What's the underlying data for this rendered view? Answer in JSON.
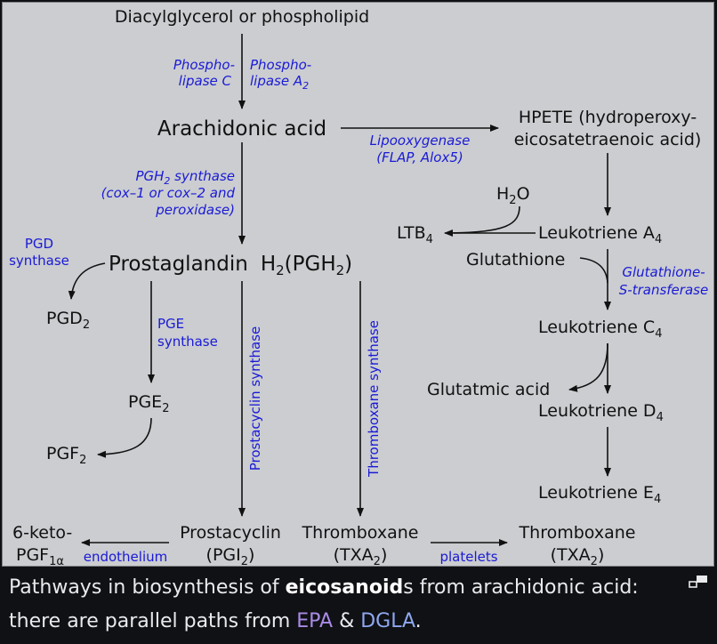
{
  "nodes": {
    "dag": "Diacylglycerol or phospholipid",
    "aa": "Arachidonic acid",
    "hpete_1": "HPETE (hydroperoxy-",
    "hpete_2": "eicosatetraenoic acid)",
    "pgh2_a": "Prostaglandin",
    "pgh2_b": "H",
    "pgh2_c": "2",
    "pgh2_d": "(PGH",
    "pgh2_e": "2",
    "pgh2_f": ")",
    "h2o_a": "H",
    "h2o_b": "2",
    "h2o_c": "O",
    "ltb4_a": "LTB",
    "ltb4_b": "4",
    "lta4_a": "Leukotriene A",
    "lta4_b": "4",
    "glutathione": "Glutathione",
    "pgd2_a": "PGD",
    "pgd2_b": "2",
    "ltc4_a": "Leukotriene C",
    "ltc4_b": "4",
    "glutamic": "Glutatmic acid",
    "pge2_a": "PGE",
    "pge2_b": "2",
    "ltd4_a": "Leukotriene D",
    "ltd4_b": "4",
    "pgf2_a": "PGF",
    "pgf2_b": "2",
    "lte4_a": "Leukotriene E",
    "lte4_b": "4",
    "keto_1": "6-keto-",
    "keto_2a": "PGF",
    "keto_2b": "1α",
    "pcyc_1": "Prostacyclin",
    "pcyc_2a": "(PGI",
    "pcyc_2b": "2",
    "pcyc_2c": ")",
    "txa_mid_1": "Thromboxane",
    "txa_mid_2a": "(TXA",
    "txa_mid_2b": "2",
    "txa_mid_2c": ")",
    "txa_right_1": "Thromboxane",
    "txa_right_2a": "(TXA",
    "txa_right_2b": "2",
    "txa_right_2c": ")"
  },
  "enzymes": {
    "plc_1": "Phospho-",
    "plc_2": "lipase C",
    "pla2_1": "Phospho-",
    "pla2_2a": "lipase A",
    "pla2_2b": "2",
    "lox_1": "Lipooxygenase",
    "lox_2": "(FLAP, Alox5)",
    "pghs_1a": "PGH",
    "pghs_1b": "2",
    "pghs_1c": " synthase",
    "pghs_2": "(cox–1 or cox–2 and",
    "pghs_3": "peroxidase)",
    "pgds_1": "PGD",
    "pgds_2": "synthase",
    "gst_1": "Glutathione-",
    "gst_2": "S-transferase",
    "pges_1": "PGE",
    "pges_2": "synthase",
    "pcs": "Prostacyclin synthase",
    "txs": "Thromboxane synthase",
    "endothelium": "endothelium",
    "platelets": "platelets"
  },
  "caption": {
    "pre": "Pathways in biosynthesis of ",
    "bold": "eicosanoid",
    "post": "s from arachidonic acid:",
    "line2_pre": "there are parallel paths from ",
    "link_epa": "EPA",
    "amp": " & ",
    "link_dgla": "DGLA",
    "end": "."
  },
  "icons": {
    "expand": "expand-icon"
  },
  "colors": {
    "background": "#cbcdd0",
    "enzyme": "#1a1ad6",
    "caption_bg": "#101114"
  }
}
